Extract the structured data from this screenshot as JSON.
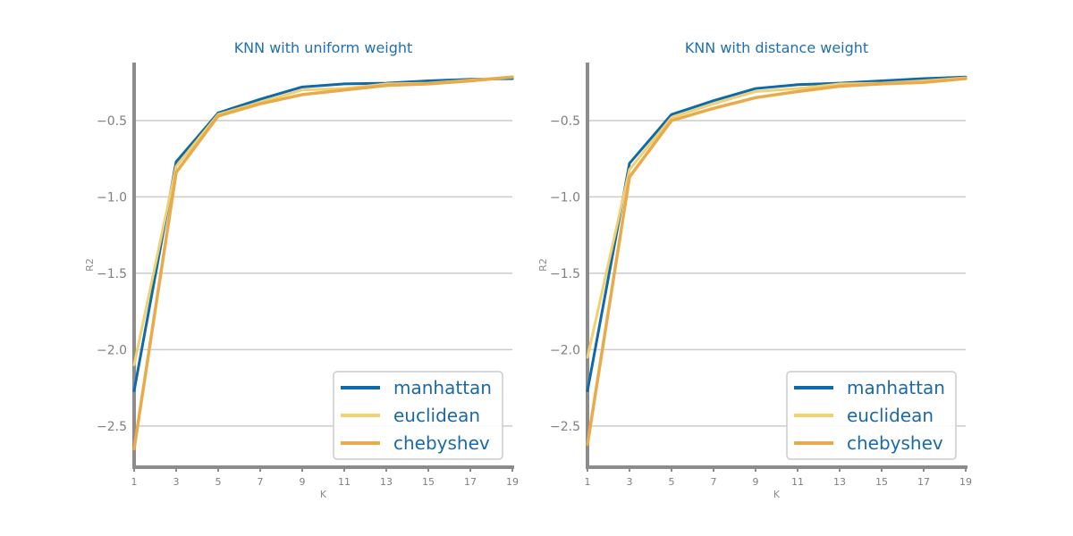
{
  "colors": {
    "title": "#1f6fb0",
    "spine": "#8c8c8c",
    "grid": "#cccccc",
    "tick_label": "#7f7f7f",
    "axis_label": "#8c8c8c",
    "legend_text": "#1a6aa8",
    "legend_border": "#cccccc"
  },
  "chart_data": [
    {
      "type": "line",
      "title": "KNN with uniform weight",
      "xlabel": "K",
      "ylabel": "R2",
      "x": [
        1,
        3,
        5,
        7,
        9,
        11,
        13,
        15,
        17,
        19
      ],
      "xticks": [
        "1",
        "3",
        "5",
        "7",
        "9",
        "11",
        "13",
        "15",
        "17",
        "19"
      ],
      "xlim": [
        1,
        19
      ],
      "yticks": [
        -2.5,
        -2.0,
        -1.5,
        -1.0,
        -0.5
      ],
      "ytick_labels": [
        "−2.5",
        "−2.0",
        "−1.5",
        "−1.0",
        "−0.5"
      ],
      "ylim": [
        -2.77,
        -0.12
      ],
      "grid": "y",
      "legend_position": "lower-right",
      "series": [
        {
          "name": "manhattan",
          "color": "#0f6aa8",
          "values": [
            -2.27,
            -0.77,
            -0.45,
            -0.36,
            -0.28,
            -0.26,
            -0.255,
            -0.24,
            -0.23,
            -0.225
          ]
        },
        {
          "name": "euclidean",
          "color": "#f0d070",
          "values": [
            -2.1,
            -0.8,
            -0.46,
            -0.38,
            -0.3,
            -0.29,
            -0.26,
            -0.255,
            -0.235,
            -0.215
          ]
        },
        {
          "name": "chebyshev",
          "color": "#e8aa4a",
          "values": [
            -2.65,
            -0.84,
            -0.47,
            -0.39,
            -0.33,
            -0.3,
            -0.27,
            -0.26,
            -0.24,
            -0.215
          ]
        }
      ]
    },
    {
      "type": "line",
      "title": "KNN with distance weight",
      "xlabel": "K",
      "ylabel": "R2",
      "x": [
        1,
        3,
        5,
        7,
        9,
        11,
        13,
        15,
        17,
        19
      ],
      "xticks": [
        "1",
        "3",
        "5",
        "7",
        "9",
        "11",
        "13",
        "15",
        "17",
        "19"
      ],
      "xlim": [
        1,
        19
      ],
      "yticks": [
        -2.5,
        -2.0,
        -1.5,
        -1.0,
        -0.5
      ],
      "ytick_labels": [
        "−2.5",
        "−2.0",
        "−1.5",
        "−1.0",
        "−0.5"
      ],
      "ylim": [
        -2.77,
        -0.12
      ],
      "grid": "y",
      "legend_position": "lower-right",
      "series": [
        {
          "name": "manhattan",
          "color": "#0f6aa8",
          "values": [
            -2.27,
            -0.78,
            -0.46,
            -0.37,
            -0.29,
            -0.265,
            -0.255,
            -0.24,
            -0.225,
            -0.215
          ]
        },
        {
          "name": "euclidean",
          "color": "#f0d070",
          "values": [
            -2.05,
            -0.82,
            -0.48,
            -0.39,
            -0.31,
            -0.29,
            -0.26,
            -0.255,
            -0.24,
            -0.22
          ]
        },
        {
          "name": "chebyshev",
          "color": "#e8aa4a",
          "values": [
            -2.62,
            -0.87,
            -0.5,
            -0.42,
            -0.35,
            -0.31,
            -0.275,
            -0.26,
            -0.25,
            -0.225
          ]
        }
      ]
    }
  ]
}
